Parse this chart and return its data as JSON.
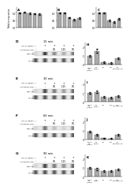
{
  "top_panels": [
    {
      "title": "A",
      "values": [
        1.0,
        1.05,
        0.98,
        0.95,
        0.92
      ],
      "errors": [
        0.04,
        0.05,
        0.04,
        0.04,
        0.04
      ],
      "ylim": [
        0,
        1.4
      ],
      "yticks": [
        0,
        0.5,
        1.0
      ],
      "bar_color": "#aaaaaa",
      "ylabel": "Relative expression"
    },
    {
      "title": "B",
      "values": [
        1.0,
        1.0,
        0.68,
        0.52,
        0.62
      ],
      "errors": [
        0.05,
        0.05,
        0.04,
        0.05,
        0.05
      ],
      "ylim": [
        0,
        1.4
      ],
      "yticks": [
        0,
        0.5,
        1.0
      ],
      "bar_color": "#aaaaaa",
      "ylabel": ""
    },
    {
      "title": "C",
      "values": [
        1.0,
        1.0,
        0.48,
        0.36,
        0.58
      ],
      "errors": [
        0.05,
        0.04,
        0.04,
        0.04,
        0.05
      ],
      "ylim": [
        0,
        1.4
      ],
      "yticks": [
        0,
        0.5,
        1.0
      ],
      "bar_color": "#aaaaaa",
      "ylabel": ""
    }
  ],
  "wb_panels": [
    {
      "time_label": "15 min",
      "panel_label": "D",
      "bar_label": "H",
      "lps_row": [
        "-",
        "+",
        "+",
        "+",
        "+"
      ],
      "anarcardic_row": [
        "-",
        "-",
        "0.5",
        "1.25",
        "0.5"
      ],
      "p65_intensities": [
        0.08,
        0.85,
        0.45,
        0.28,
        0.55
      ],
      "nfkb_intensities": [
        0.7,
        0.72,
        0.68,
        0.67,
        0.7
      ],
      "bar_values": [
        1.0,
        1.55,
        0.28,
        0.18,
        0.75
      ],
      "bar_errors": [
        0.1,
        0.2,
        0.06,
        0.05,
        0.1
      ],
      "ylim": [
        0,
        2.5
      ],
      "yticks": [
        0,
        1,
        2
      ],
      "bar_color": "#aaaaaa"
    },
    {
      "time_label": "30 min",
      "panel_label": "E",
      "bar_label": "I",
      "lps_row": [
        "-",
        "+",
        "+",
        "+",
        "+"
      ],
      "anarcardic_row": [
        "-",
        "-",
        "0.5",
        "1.25",
        "0.5"
      ],
      "p65_intensities": [
        0.08,
        0.75,
        0.5,
        0.35,
        0.6
      ],
      "nfkb_intensities": [
        0.68,
        0.7,
        0.67,
        0.66,
        0.69
      ],
      "bar_values": [
        1.0,
        1.15,
        0.55,
        0.5,
        0.68
      ],
      "bar_errors": [
        0.1,
        0.14,
        0.08,
        0.09,
        0.11
      ],
      "ylim": [
        0,
        2.5
      ],
      "yticks": [
        0,
        1,
        2
      ],
      "bar_color": "#aaaaaa"
    },
    {
      "time_label": "60 min",
      "panel_label": "F",
      "bar_label": "J",
      "lps_row": [
        "-",
        "+",
        "+",
        "+",
        "+"
      ],
      "anarcardic_row": [
        "-",
        "-",
        "0.5",
        "1.25",
        "0.5"
      ],
      "p65_intensities": [
        0.08,
        0.55,
        0.18,
        0.1,
        0.45
      ],
      "nfkb_intensities": [
        0.68,
        0.7,
        0.67,
        0.66,
        0.69
      ],
      "bar_values": [
        0.9,
        0.48,
        0.14,
        0.1,
        0.55
      ],
      "bar_errors": [
        0.09,
        0.09,
        0.04,
        0.04,
        0.09
      ],
      "ylim": [
        0,
        2.5
      ],
      "yticks": [
        0,
        1,
        2
      ],
      "bar_color": "#aaaaaa"
    },
    {
      "time_label": "90 min",
      "panel_label": "G",
      "bar_label": "K",
      "lps_row": [
        "-",
        "+",
        "+",
        "+",
        "+"
      ],
      "anarcardic_row": [
        "-",
        "-",
        "0.5",
        "1.25",
        "0.5"
      ],
      "p65_intensities": [
        0.08,
        0.78,
        0.52,
        0.4,
        0.62
      ],
      "nfkb_intensities": [
        0.68,
        0.7,
        0.67,
        0.66,
        0.69
      ],
      "bar_values": [
        1.0,
        0.88,
        0.68,
        0.62,
        0.82
      ],
      "bar_errors": [
        0.11,
        0.13,
        0.09,
        0.09,
        0.11
      ],
      "ylim": [
        0,
        2.5
      ],
      "yticks": [
        0,
        1,
        2
      ],
      "bar_color": "#aaaaaa"
    }
  ],
  "figure_bg": "#ffffff",
  "lps_label": "LPS (1 μg/mL)",
  "ana_label": "Anacardic (μM)",
  "p65_label": "p-NF-κB",
  "nfkb_label": "NF-κB",
  "bar_xlabel_groups": [
    "control\nLPS\n+/-μg/mL",
    "LPS\n1μg/mL",
    "0.5",
    "1.25",
    "0.5\nanarcardic AB"
  ]
}
